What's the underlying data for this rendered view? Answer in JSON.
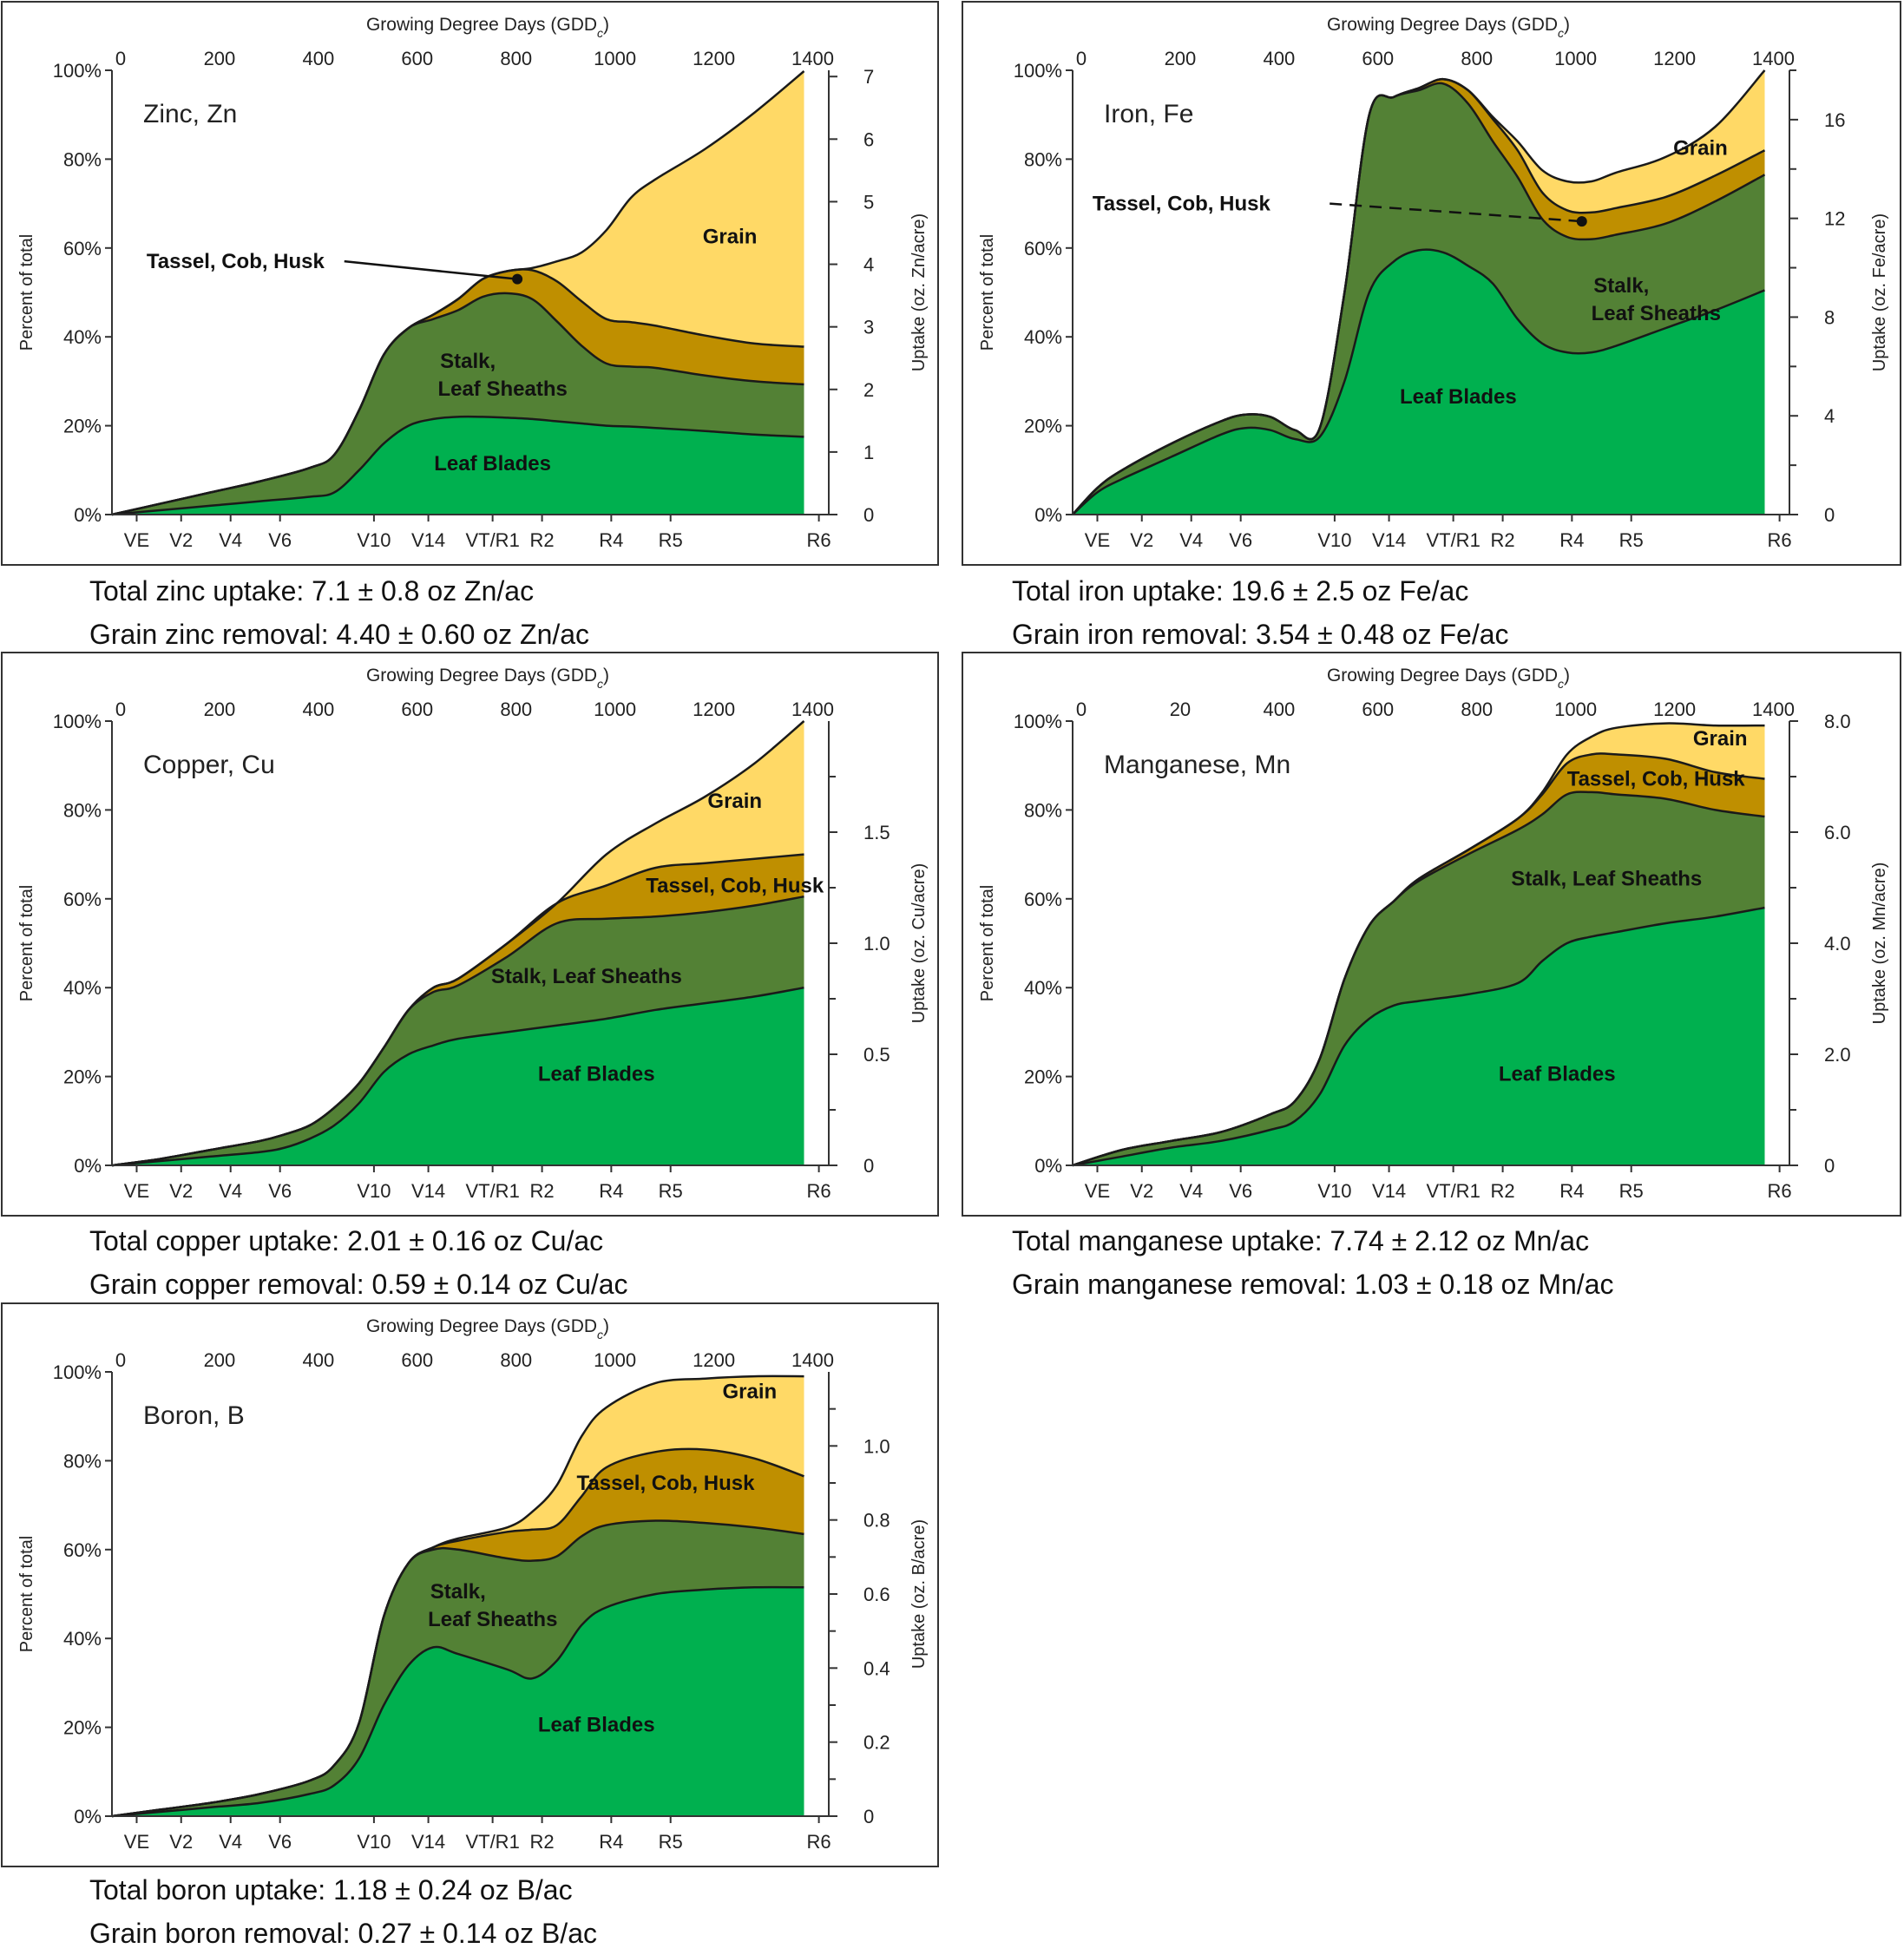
{
  "colors": {
    "leaf": "#00B04F",
    "stalk": "#538135",
    "tassel": "#BF8F00",
    "grain": "#FFD966",
    "outline": "#1a1a1a"
  },
  "shared_axes": {
    "top_title": "Growing Degree Days (GDD",
    "top_title_sub": "c",
    "top_title_end": ")",
    "left_label": "Percent of total",
    "left_ticks": [
      "0%",
      "20%",
      "40%",
      "60%",
      "80%",
      "100%"
    ],
    "stages": [
      "VE",
      "V2",
      "V4",
      "V6",
      "V10",
      "V14",
      "VT/R1",
      "R2",
      "R4",
      "R5",
      "R6"
    ]
  },
  "captions": [
    {
      "line1": "Total zinc uptake: 7.1 ± 0.8 oz Zn/ac",
      "line2": "Grain zinc removal: 4.40 ± 0.60 oz Zn/ac"
    },
    {
      "line1": "Total iron uptake: 19.6 ± 2.5 oz Fe/ac",
      "line2": "Grain iron removal: 3.54 ± 0.48 oz Fe/ac"
    },
    {
      "line1": "Total copper uptake: 2.01 ± 0.16 oz Cu/ac",
      "line2": "Grain copper removal: 0.59 ± 0.14 oz Cu/ac"
    },
    {
      "line1": "Total manganese uptake: 7.74 ± 2.12 oz Mn/ac",
      "line2": "Grain manganese removal: 1.03 ± 0.18 oz Mn/ac"
    },
    {
      "line1": "Total boron uptake: 1.18 ± 0.24 oz B/ac",
      "line2": "Grain boron removal: 0.27 ± 0.14 oz B/ac"
    }
  ],
  "chart_data": [
    {
      "type": "area",
      "title": "Zinc, Zn",
      "xlabel": "Growing Degree Days (GDDc)",
      "ylabel": "Percent of total",
      "y2label": "Uptake (oz. Zn/acre)",
      "x_ticks": [
        "0",
        "200",
        "400",
        "600",
        "800",
        "1000",
        "1200",
        "1400"
      ],
      "y2_ticks": [
        "0",
        "1",
        "2",
        "3",
        "4",
        "5",
        "6",
        "7"
      ],
      "y2_major": [
        0,
        1,
        2,
        3,
        4,
        5,
        6,
        7
      ],
      "y2_minor": [],
      "y2_max": 7.1,
      "ylim": [
        0,
        100
      ],
      "labels": {
        "grain": "Grain",
        "tassel": "Tassel, Cob, Husk",
        "stalk": "Stalk,\nLeaf Sheaths",
        "leaf": "Leaf Blades"
      },
      "label_spots": {
        "grain": [
          1250,
          61
        ],
        "stalk": [
          720,
          33
        ],
        "leaf": [
          770,
          10
        ],
        "tassel": [
          250,
          57
        ]
      },
      "tassel_pointer": {
        "from": [
          470,
          57
        ],
        "to": [
          820,
          53
        ],
        "style": "solid"
      },
      "x": [
        0,
        100,
        200,
        300,
        400,
        450,
        500,
        550,
        600,
        650,
        700,
        750,
        800,
        850,
        900,
        950,
        1000,
        1050,
        1100,
        1200,
        1300,
        1400
      ],
      "series": [
        {
          "name": "Leaf Blades",
          "values": [
            0,
            1,
            2,
            3,
            4,
            5,
            10,
            16,
            20,
            21.5,
            22,
            22,
            21.8,
            21.5,
            21,
            20.5,
            20,
            19.8,
            19.5,
            18.8,
            18,
            17.5
          ]
        },
        {
          "name": "Stalk, Leaf Sheaths",
          "values": [
            0,
            1.5,
            3,
            4.5,
            6.5,
            8.5,
            13.5,
            20,
            22,
            22.5,
            24,
            27,
            28,
            27,
            22.5,
            17.5,
            14,
            13.5,
            13.5,
            12.5,
            12,
            11.8
          ]
        },
        {
          "name": "Tassel, Cob, Husk",
          "values": [
            0,
            0,
            0,
            0,
            0,
            0,
            0,
            0,
            0,
            1,
            2.5,
            4,
            5,
            6.5,
            9,
            10,
            10,
            10,
            9.5,
            9,
            8.5,
            8.5
          ]
        },
        {
          "name": "Grain",
          "values": [
            0,
            0,
            0,
            0,
            0,
            0,
            0,
            0,
            0,
            0,
            0,
            0,
            0,
            0.5,
            4.5,
            11,
            20,
            28,
            33,
            42,
            52,
            62
          ]
        }
      ]
    },
    {
      "type": "area",
      "title": "Iron, Fe",
      "xlabel": "Growing Degree Days (GDDc)",
      "ylabel": "Percent of total",
      "y2label": "Uptake (oz. Fe/acre)",
      "x_ticks": [
        "0",
        "200",
        "400",
        "600",
        "800",
        "1000",
        "1200",
        "1400"
      ],
      "y2_ticks": [
        "0",
        "4",
        "8",
        "12",
        "16"
      ],
      "y2_major": [
        0,
        4,
        8,
        12,
        16
      ],
      "y2_minor": [
        2,
        6,
        10,
        14,
        18
      ],
      "y2_max": 18,
      "ylim": [
        0,
        100
      ],
      "labels": {
        "grain": "Grain",
        "tassel": "Tassel, Cob, Husk",
        "stalk": "Stalk,\nLeaf Sheaths",
        "leaf": "Leaf Blades"
      },
      "label_spots": {
        "grain": [
          1270,
          81
        ],
        "stalk": [
          1110,
          50
        ],
        "leaf": [
          780,
          25
        ],
        "tassel": [
          220,
          70
        ]
      },
      "tassel_pointer": {
        "from": [
          520,
          70
        ],
        "to": [
          1030,
          66
        ],
        "style": "dashed"
      },
      "x": [
        0,
        50,
        100,
        200,
        300,
        350,
        400,
        450,
        500,
        550,
        600,
        650,
        700,
        750,
        800,
        850,
        900,
        950,
        1000,
        1050,
        1100,
        1200,
        1300,
        1400
      ],
      "series": [
        {
          "name": "Leaf Blades",
          "values": [
            0,
            5,
            8,
            13,
            18,
            19.5,
            19,
            17,
            17.5,
            30,
            50,
            57,
            59.5,
            59,
            56,
            52,
            44,
            38.5,
            36.5,
            36.5,
            38,
            42,
            46,
            50.5
          ]
        },
        {
          "name": "Stalk, Leaf Sheaths",
          "values": [
            0,
            1,
            2,
            3,
            3,
            3,
            3,
            2,
            2,
            20,
            40,
            37,
            36,
            38,
            36.5,
            32,
            32,
            28,
            26,
            25.5,
            25,
            23.5,
            24.5,
            26
          ]
        },
        {
          "name": "Tassel, Cob, Husk",
          "values": [
            0,
            0,
            0,
            0,
            0,
            0,
            0,
            0,
            0,
            0,
            0,
            0,
            0.5,
            1,
            3,
            5,
            6,
            6,
            6,
            6,
            6,
            6,
            5.8,
            5.5
          ]
        },
        {
          "name": "Grain",
          "values": [
            0,
            0,
            0,
            0,
            0,
            0,
            0,
            0,
            0,
            0,
            0,
            0,
            0,
            0,
            0,
            0.5,
            2,
            5,
            6.5,
            7,
            8,
            9,
            11,
            18
          ]
        }
      ]
    },
    {
      "type": "area",
      "title": "Copper, Cu",
      "xlabel": "Growing Degree Days (GDDc)",
      "ylabel": "Percent of total",
      "y2label": "Uptake (oz. Cu/acre)",
      "x_ticks": [
        "0",
        "200",
        "400",
        "600",
        "800",
        "1000",
        "1200",
        "1400"
      ],
      "y2_ticks": [
        "0",
        "0.5",
        "1.0",
        "1.5"
      ],
      "y2_major": [
        0,
        0.5,
        1.0,
        1.5
      ],
      "y2_minor": [
        0.25,
        0.75,
        1.25,
        1.75
      ],
      "y2_max": 2.0,
      "ylim": [
        0,
        100
      ],
      "labels": {
        "grain": "Grain",
        "tassel": "Tassel, Cob, Husk",
        "stalk": "Stalk, Leaf Sheaths",
        "leaf": "Leaf Blades"
      },
      "label_spots": {
        "grain": [
          1260,
          80.5
        ],
        "stalk": [
          960,
          41
        ],
        "leaf": [
          980,
          19
        ],
        "tassel": [
          1260,
          63
        ]
      },
      "tassel_pointer": null,
      "x": [
        0,
        100,
        200,
        300,
        350,
        400,
        450,
        500,
        550,
        600,
        650,
        700,
        800,
        900,
        1000,
        1100,
        1200,
        1300,
        1400
      ],
      "series": [
        {
          "name": "Leaf Blades",
          "values": [
            0,
            1,
            2,
            3,
            4,
            6,
            9,
            14,
            21,
            25,
            27,
            28.5,
            30,
            31.5,
            33,
            35,
            36.5,
            38,
            40
          ]
        },
        {
          "name": "Stalk, Leaf Sheaths",
          "values": [
            0,
            0.5,
            1.5,
            2.5,
            3,
            3,
            4,
            4.5,
            5.5,
            10,
            12,
            12,
            17,
            23,
            22.5,
            21,
            20.5,
            20.5,
            20.5
          ]
        },
        {
          "name": "Tassel, Cob, Husk",
          "values": [
            0,
            0,
            0,
            0,
            0,
            0,
            0,
            0,
            0,
            0,
            1,
            1.5,
            3,
            4.5,
            7.5,
            11,
            11,
            10.5,
            9.5
          ]
        },
        {
          "name": "Grain",
          "values": [
            0,
            0,
            0,
            0,
            0,
            0,
            0,
            0,
            0,
            0,
            0,
            0,
            0,
            0,
            7,
            10,
            15,
            21.5,
            30
          ]
        }
      ]
    },
    {
      "type": "area",
      "title": "Manganese, Mn",
      "xlabel": "Growing Degree Days (GDDc)",
      "ylabel": "Percent of total",
      "y2label": "Uptake (oz. Mn/acre)",
      "x_ticks": [
        "0",
        "20",
        "400",
        "600",
        "800",
        "1000",
        "1200",
        "1400"
      ],
      "y2_ticks": [
        "0",
        "2.0",
        "4.0",
        "6.0",
        "8.0"
      ],
      "y2_major": [
        0,
        2,
        4,
        6,
        8
      ],
      "y2_minor": [
        1,
        3,
        5,
        7
      ],
      "y2_max": 8.0,
      "ylim": [
        0,
        100
      ],
      "labels": {
        "grain": "Grain",
        "tassel": "Tassel, Cob, Husk",
        "stalk": "Stalk, Leaf Sheaths",
        "leaf": "Leaf Blades"
      },
      "label_spots": {
        "grain": [
          1310,
          94.5
        ],
        "stalk": [
          1080,
          63
        ],
        "leaf": [
          980,
          19
        ],
        "tassel": [
          1180,
          87
        ]
      },
      "tassel_pointer": null,
      "x": [
        0,
        100,
        200,
        300,
        400,
        450,
        500,
        550,
        600,
        650,
        700,
        800,
        900,
        950,
        1000,
        1050,
        1100,
        1200,
        1300,
        1400
      ],
      "series": [
        {
          "name": "Leaf Blades",
          "values": [
            0,
            2,
            4,
            5.5,
            8,
            10,
            16,
            27,
            33,
            36,
            37,
            38.5,
            41,
            46,
            50,
            51.5,
            52.5,
            54.5,
            56,
            58
          ]
        },
        {
          "name": "Stalk, Leaf Sheaths",
          "values": [
            0,
            1.5,
            1.5,
            2,
            3.5,
            4.5,
            8,
            15,
            21,
            23.5,
            27,
            31.5,
            34.5,
            33,
            33.5,
            32.5,
            31,
            28,
            24,
            20.5
          ]
        },
        {
          "name": "Tassel, Cob, Husk",
          "values": [
            0,
            0,
            0,
            0,
            0,
            0,
            0,
            0,
            0,
            0,
            0.5,
            1,
            2.5,
            4.5,
            7,
            8.5,
            9,
            9,
            8.5,
            8.5
          ]
        },
        {
          "name": "Grain",
          "values": [
            0,
            0,
            0,
            0,
            0,
            0,
            0,
            0,
            0,
            0,
            0,
            0,
            0,
            0.5,
            2,
            4,
            6,
            8,
            10.5,
            12
          ]
        }
      ]
    },
    {
      "type": "area",
      "title": "Boron, B",
      "xlabel": "Growing Degree Days (GDDc)",
      "ylabel": "Percent of total",
      "y2label": "Uptake (oz. B/acre)",
      "x_ticks": [
        "0",
        "200",
        "400",
        "600",
        "800",
        "1000",
        "1200",
        "1400"
      ],
      "y2_ticks": [
        "0",
        "0.2",
        "0.4",
        "0.6",
        "0.8",
        "1.0"
      ],
      "y2_major": [
        0,
        0.2,
        0.4,
        0.6,
        0.8,
        1.0
      ],
      "y2_minor": [
        0.1,
        0.3,
        0.5,
        0.7,
        0.9,
        1.1
      ],
      "y2_max": 1.2,
      "ylim": [
        0,
        100
      ],
      "labels": {
        "grain": "Grain",
        "tassel": "Tassel, Cob, Husk",
        "stalk": "Stalk,\nLeaf Sheaths",
        "leaf": "Leaf Blades"
      },
      "label_spots": {
        "grain": [
          1290,
          94
        ],
        "stalk": [
          700,
          49
        ],
        "leaf": [
          980,
          19
        ],
        "tassel": [
          1120,
          75
        ]
      },
      "tassel_pointer": null,
      "x": [
        0,
        100,
        200,
        300,
        400,
        450,
        500,
        550,
        600,
        650,
        700,
        800,
        850,
        900,
        950,
        1000,
        1100,
        1200,
        1300,
        1400
      ],
      "series": [
        {
          "name": "Leaf Blades",
          "values": [
            0,
            1,
            2,
            3,
            5,
            7,
            13,
            25,
            34,
            38,
            36.5,
            33,
            31,
            35,
            43,
            47,
            50,
            51,
            51.5,
            51.5
          ]
        },
        {
          "name": "Stalk, Leaf Sheaths",
          "values": [
            0,
            0.5,
            1,
            2,
            3,
            4.5,
            8,
            20,
            23,
            22,
            23.5,
            25,
            26.5,
            23.5,
            20,
            18.5,
            16.5,
            15,
            13.5,
            12
          ]
        },
        {
          "name": "Tassel, Cob, Husk",
          "values": [
            0,
            0,
            0,
            0,
            0,
            0,
            0,
            0,
            0,
            0.5,
            2,
            6,
            7,
            7,
            9,
            13,
            15.5,
            16.5,
            15.5,
            13
          ]
        },
        {
          "name": "Grain",
          "values": [
            0,
            0,
            0,
            0,
            0,
            0,
            0,
            0,
            0,
            0,
            0.5,
            1,
            4,
            9,
            13.5,
            13.5,
            15.5,
            16,
            18.5,
            22.5
          ]
        }
      ]
    }
  ]
}
